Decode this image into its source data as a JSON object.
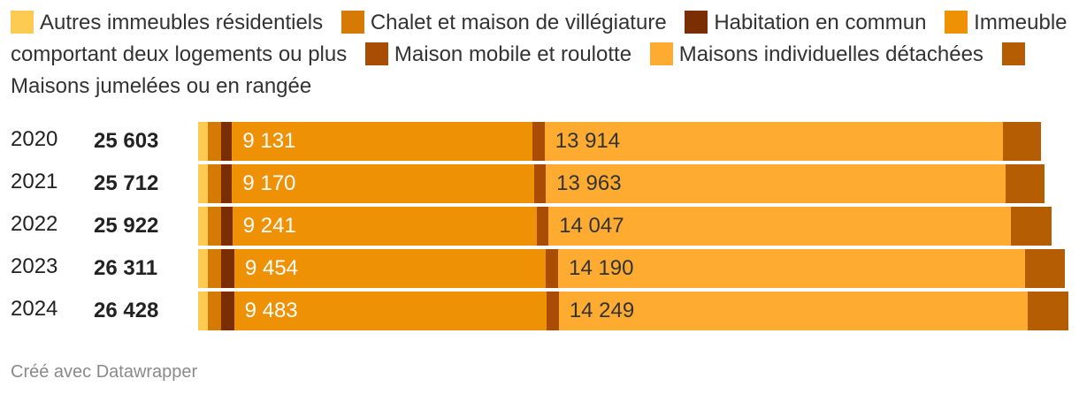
{
  "chart_data": {
    "type": "bar",
    "orientation": "horizontal",
    "stacked": true,
    "legend_position": "top",
    "categories": [
      "2020",
      "2021",
      "2022",
      "2023",
      "2024"
    ],
    "totals": [
      "25 603",
      "25 712",
      "25 922",
      "26 311",
      "26 428"
    ],
    "series": [
      {
        "name": "Autres immeubles résidentiels",
        "color": "#fecb52",
        "values": [
          300,
          300,
          300,
          300,
          300
        ]
      },
      {
        "name": "Chalet et maison de villégiature",
        "color": "#d57a05",
        "values": [
          400,
          400,
          410,
          410,
          410
        ]
      },
      {
        "name": "Habitation en commun",
        "color": "#7b2d03",
        "values": [
          330,
          330,
          330,
          390,
          380
        ]
      },
      {
        "name": "Immeuble comportant deux logements ou plus",
        "color": "#ef9105",
        "values": [
          9131,
          9170,
          9241,
          9454,
          9483
        ],
        "labels": [
          "9 131",
          "9 170",
          "9 241",
          "9 454",
          "9 483"
        ]
      },
      {
        "name": "Maison mobile et roulotte",
        "color": "#a84d03",
        "values": [
          360,
          360,
          360,
          380,
          380
        ]
      },
      {
        "name": "Maisons individuelles détachées",
        "color": "#feab31",
        "values": [
          13914,
          13963,
          14047,
          14190,
          14249
        ],
        "labels": [
          "13 914",
          "13 963",
          "14 047",
          "14 190",
          "14 249"
        ]
      },
      {
        "name": "Maisons jumelées ou en rangée",
        "color": "#b55d03",
        "values": [
          1168,
          1189,
          1234,
          1187,
          1226
        ]
      }
    ],
    "max_total": 26428
  },
  "credit": "Créé avec Datawrapper"
}
